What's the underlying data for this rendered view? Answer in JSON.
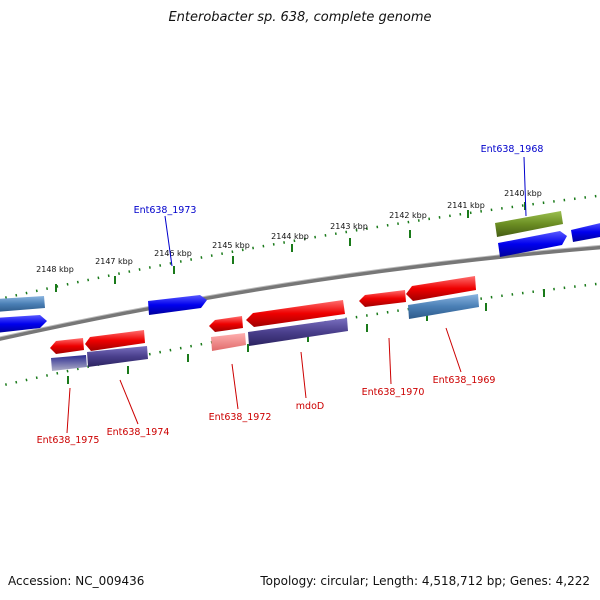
{
  "title": "Enterobacter sp. 638, complete genome",
  "footer": {
    "accession": "Accession: NC_009436",
    "stats": "Topology: circular; Length: 4,518,712 bp; Genes: 4,222"
  },
  "ticks": [
    "2140 kbp",
    "2141 kbp",
    "2142 kbp",
    "2143 kbp",
    "2144 kbp",
    "2145 kbp",
    "2146 kbp",
    "2147 kbp",
    "2148 kbp"
  ],
  "genes_top": [
    {
      "label": "Ent638_1968",
      "color": "#0000cc"
    },
    {
      "label": "Ent638_1973",
      "color": "#0000cc"
    }
  ],
  "genes_bottom": [
    {
      "label": "Ent638_1969",
      "color": "#cc0000"
    },
    {
      "label": "Ent638_1970",
      "color": "#cc0000"
    },
    {
      "label": "mdoD",
      "color": "#cc0000"
    },
    {
      "label": "Ent638_1972",
      "color": "#cc0000"
    },
    {
      "label": "Ent638_1974",
      "color": "#cc0000"
    },
    {
      "label": "Ent638_1975",
      "color": "#cc0000"
    }
  ],
  "colors": {
    "forward_cds": "#0000ee",
    "reverse_cds": "#ee0000",
    "steelblue_feature": "#4a7fb5",
    "navy_feature": "#4a3f8c",
    "olive_feature": "#6b8e23",
    "tick_green": "#1a7a1a",
    "backbone": "#888888"
  }
}
